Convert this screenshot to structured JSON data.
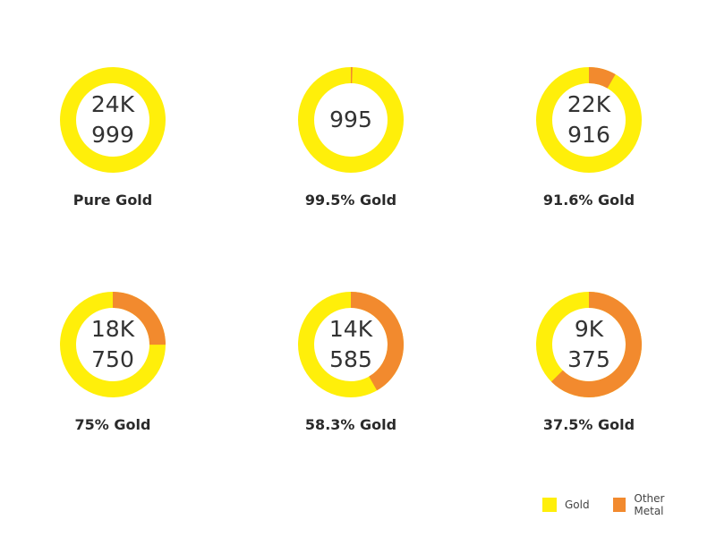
{
  "chart_data": {
    "type": "pie",
    "variant": "donut",
    "charts": [
      {
        "line1": "24K",
        "line2": "999",
        "caption": "Pure Gold",
        "gold_fraction": 0.999
      },
      {
        "line1": "995",
        "line2": "",
        "caption": "99.5% Gold",
        "gold_fraction": 0.995
      },
      {
        "line1": "22K",
        "line2": "916",
        "caption": "91.6% Gold",
        "gold_fraction": 0.916
      },
      {
        "line1": "18K",
        "line2": "750",
        "caption": "75% Gold",
        "gold_fraction": 0.75
      },
      {
        "line1": "14K",
        "line2": "585",
        "caption": "58.3% Gold",
        "gold_fraction": 0.583
      },
      {
        "line1": "9K",
        "line2": "375",
        "caption": "37.5% Gold",
        "gold_fraction": 0.375
      }
    ],
    "legend": [
      {
        "label": "Gold",
        "color": "#FFEF0A"
      },
      {
        "label": "Other Metal",
        "color": "#F28A2E"
      }
    ]
  }
}
